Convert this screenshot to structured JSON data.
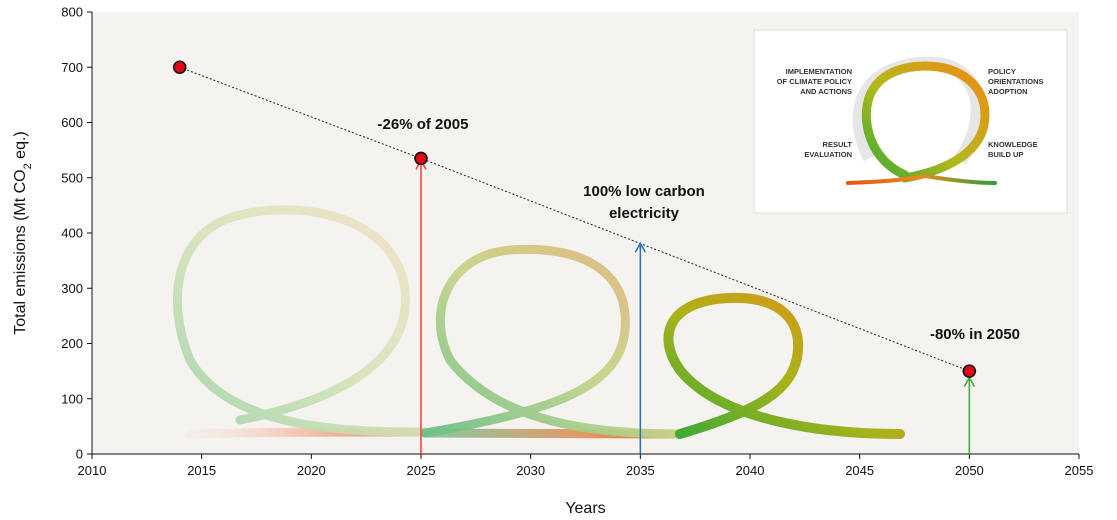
{
  "chart_data": {
    "type": "line",
    "x": [
      2014,
      2025,
      2050
    ],
    "y": [
      700,
      535,
      150
    ],
    "xlabel": "Years",
    "ylabel": "Total emissions (Mt CO2 eq.)",
    "ylabel_parts": [
      "Total emissions (Mt CO",
      "2",
      " eq.)"
    ],
    "xlim": [
      2010,
      2055
    ],
    "ylim": [
      0,
      800
    ],
    "xticks": [
      2010,
      2015,
      2020,
      2025,
      2030,
      2035,
      2040,
      2045,
      2050,
      2055
    ],
    "yticks": [
      0,
      100,
      200,
      300,
      400,
      500,
      600,
      700,
      800
    ],
    "grid": false,
    "annotations": [
      {
        "text": "-26% of 2005",
        "x": 2025,
        "y": 535
      },
      {
        "text": "100% low carbon",
        "text2": "electricity",
        "x": 2035,
        "y": 380
      },
      {
        "text": "-80% in 2050",
        "x": 2050,
        "y": 150
      }
    ],
    "arrows": [
      {
        "x": 2025,
        "y_top": 535,
        "color": "#ff3b30"
      },
      {
        "x": 2035,
        "y_top": 385,
        "color": "#1f6fbf"
      },
      {
        "x": 2050,
        "y_top": 142,
        "color": "#3aaa35"
      }
    ]
  },
  "inset": {
    "top_left": [
      "IMPLEMENTATION",
      "OF CLIMATE POLICY",
      "AND ACTIONS"
    ],
    "top_right": [
      "POLICY",
      "ORIENTATIONS",
      "ADOPTION"
    ],
    "bottom_left": [
      "RESULT",
      "EVALUATION"
    ],
    "bottom_right": [
      "KNOWLEDGE",
      "BUILD UP"
    ]
  },
  "colors": {
    "background": "#f4f3f0",
    "line": "#222222",
    "point_fill": "#e30613",
    "red_arrow": "#ff3b30",
    "blue_arrow": "#1f6fbf",
    "green_arrow": "#3aaa35"
  }
}
